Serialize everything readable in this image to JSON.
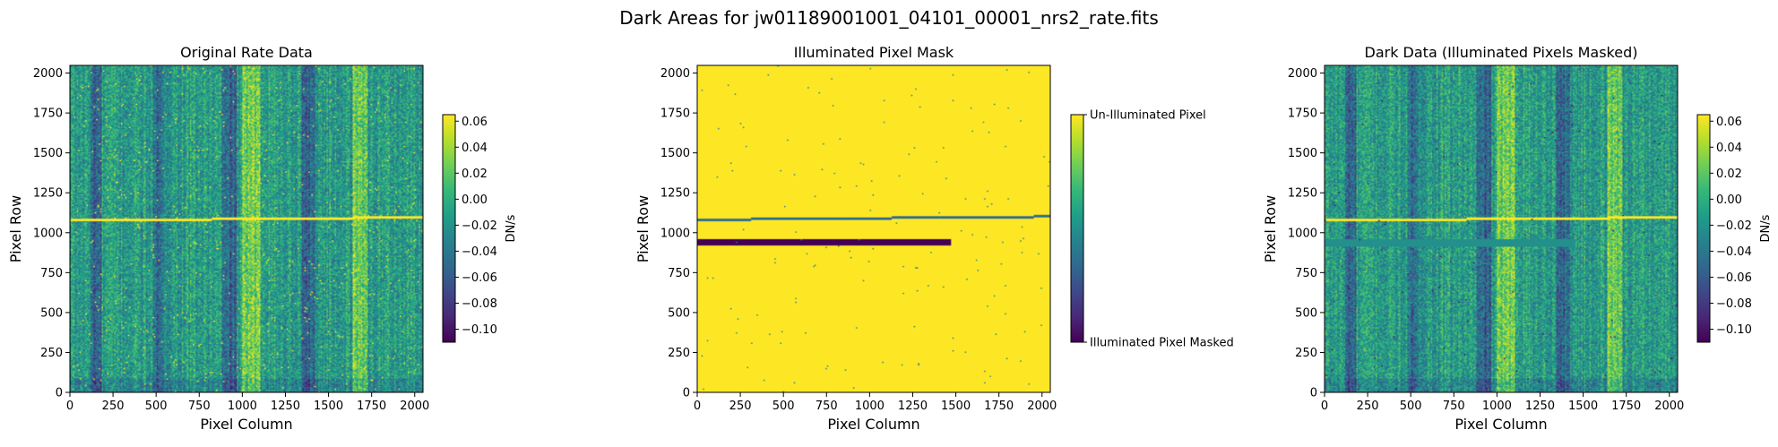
{
  "figure": {
    "suptitle": "Dark Areas for jw01189001001_04101_00001_nrs2_rate.fits"
  },
  "colors": {
    "viridis": [
      "#440154",
      "#482878",
      "#3e4989",
      "#31688e",
      "#26828e",
      "#1f9e89",
      "#35b779",
      "#6ece58",
      "#b5de2b",
      "#fde725"
    ],
    "frame": "#000000"
  },
  "chart_data": [
    {
      "type": "heatmap",
      "title": "Original Rate Data",
      "xlabel": "Pixel Column",
      "ylabel": "Pixel Row",
      "xlim": [
        0,
        2048
      ],
      "ylim": [
        0,
        2048
      ],
      "xticks": [
        0,
        250,
        500,
        750,
        1000,
        1250,
        1500,
        1750,
        2000
      ],
      "yticks": [
        0,
        250,
        500,
        750,
        1000,
        1250,
        1500,
        1750,
        2000
      ],
      "colormap": "viridis",
      "colorbar": {
        "label": "DN/s",
        "range": [
          -0.11,
          0.065
        ],
        "ticks": [
          "0.06",
          "0.04",
          "0.02",
          "0.00",
          "−0.02",
          "−0.04",
          "−0.06",
          "−0.08",
          "−0.10"
        ],
        "tick_values": [
          0.06,
          0.04,
          0.02,
          0.0,
          -0.02,
          -0.04,
          -0.06,
          -0.08,
          -0.1
        ]
      },
      "features": {
        "bright_trace_row_start": 1080,
        "bright_trace_row_end": 1100,
        "dark_column_bands": [
          [
            120,
            180
          ],
          [
            480,
            540
          ],
          [
            880,
            960
          ],
          [
            1340,
            1420
          ]
        ],
        "bright_column_bands": [
          [
            1000,
            1100
          ],
          [
            1640,
            1720
          ]
        ]
      }
    },
    {
      "type": "heatmap",
      "title": "Illuminated Pixel Mask",
      "xlabel": "Pixel Column",
      "ylabel": "Pixel Row",
      "xlim": [
        0,
        2048
      ],
      "ylim": [
        0,
        2048
      ],
      "xticks": [
        0,
        250,
        500,
        750,
        1000,
        1250,
        1500,
        1750,
        2000
      ],
      "yticks": [
        0,
        250,
        500,
        750,
        1000,
        1250,
        1500,
        1750,
        2000
      ],
      "colormap": "viridis",
      "colorbar": {
        "ticks": [
          "Un-Illuminated Pixel",
          "Illuminated Pixel Masked"
        ],
        "tick_values": [
          1,
          0
        ]
      },
      "features": {
        "masked_slit_x": [
          0,
          1470
        ],
        "masked_slit_y": [
          925,
          960
        ],
        "trace_row_start": 1085,
        "trace_row_end": 1105
      }
    },
    {
      "type": "heatmap",
      "title": "Dark Data (Illuminated Pixels Masked)",
      "xlabel": "Pixel Column",
      "ylabel": "Pixel Row",
      "xlim": [
        0,
        2048
      ],
      "ylim": [
        0,
        2048
      ],
      "xticks": [
        0,
        250,
        500,
        750,
        1000,
        1250,
        1500,
        1750,
        2000
      ],
      "yticks": [
        0,
        250,
        500,
        750,
        1000,
        1250,
        1500,
        1750,
        2000
      ],
      "colormap": "viridis",
      "colorbar": {
        "label": "DN/s",
        "range": [
          -0.11,
          0.065
        ],
        "ticks": [
          "0.06",
          "0.04",
          "0.02",
          "0.00",
          "−0.02",
          "−0.04",
          "−0.06",
          "−0.08",
          "−0.10"
        ],
        "tick_values": [
          0.06,
          0.04,
          0.02,
          0.0,
          -0.02,
          -0.04,
          -0.06,
          -0.08,
          -0.1
        ]
      },
      "features": {
        "masked_slit_x": [
          0,
          1450
        ],
        "masked_slit_y": [
          915,
          965
        ],
        "trace_row_start": 1080,
        "trace_row_end": 1100
      }
    }
  ]
}
